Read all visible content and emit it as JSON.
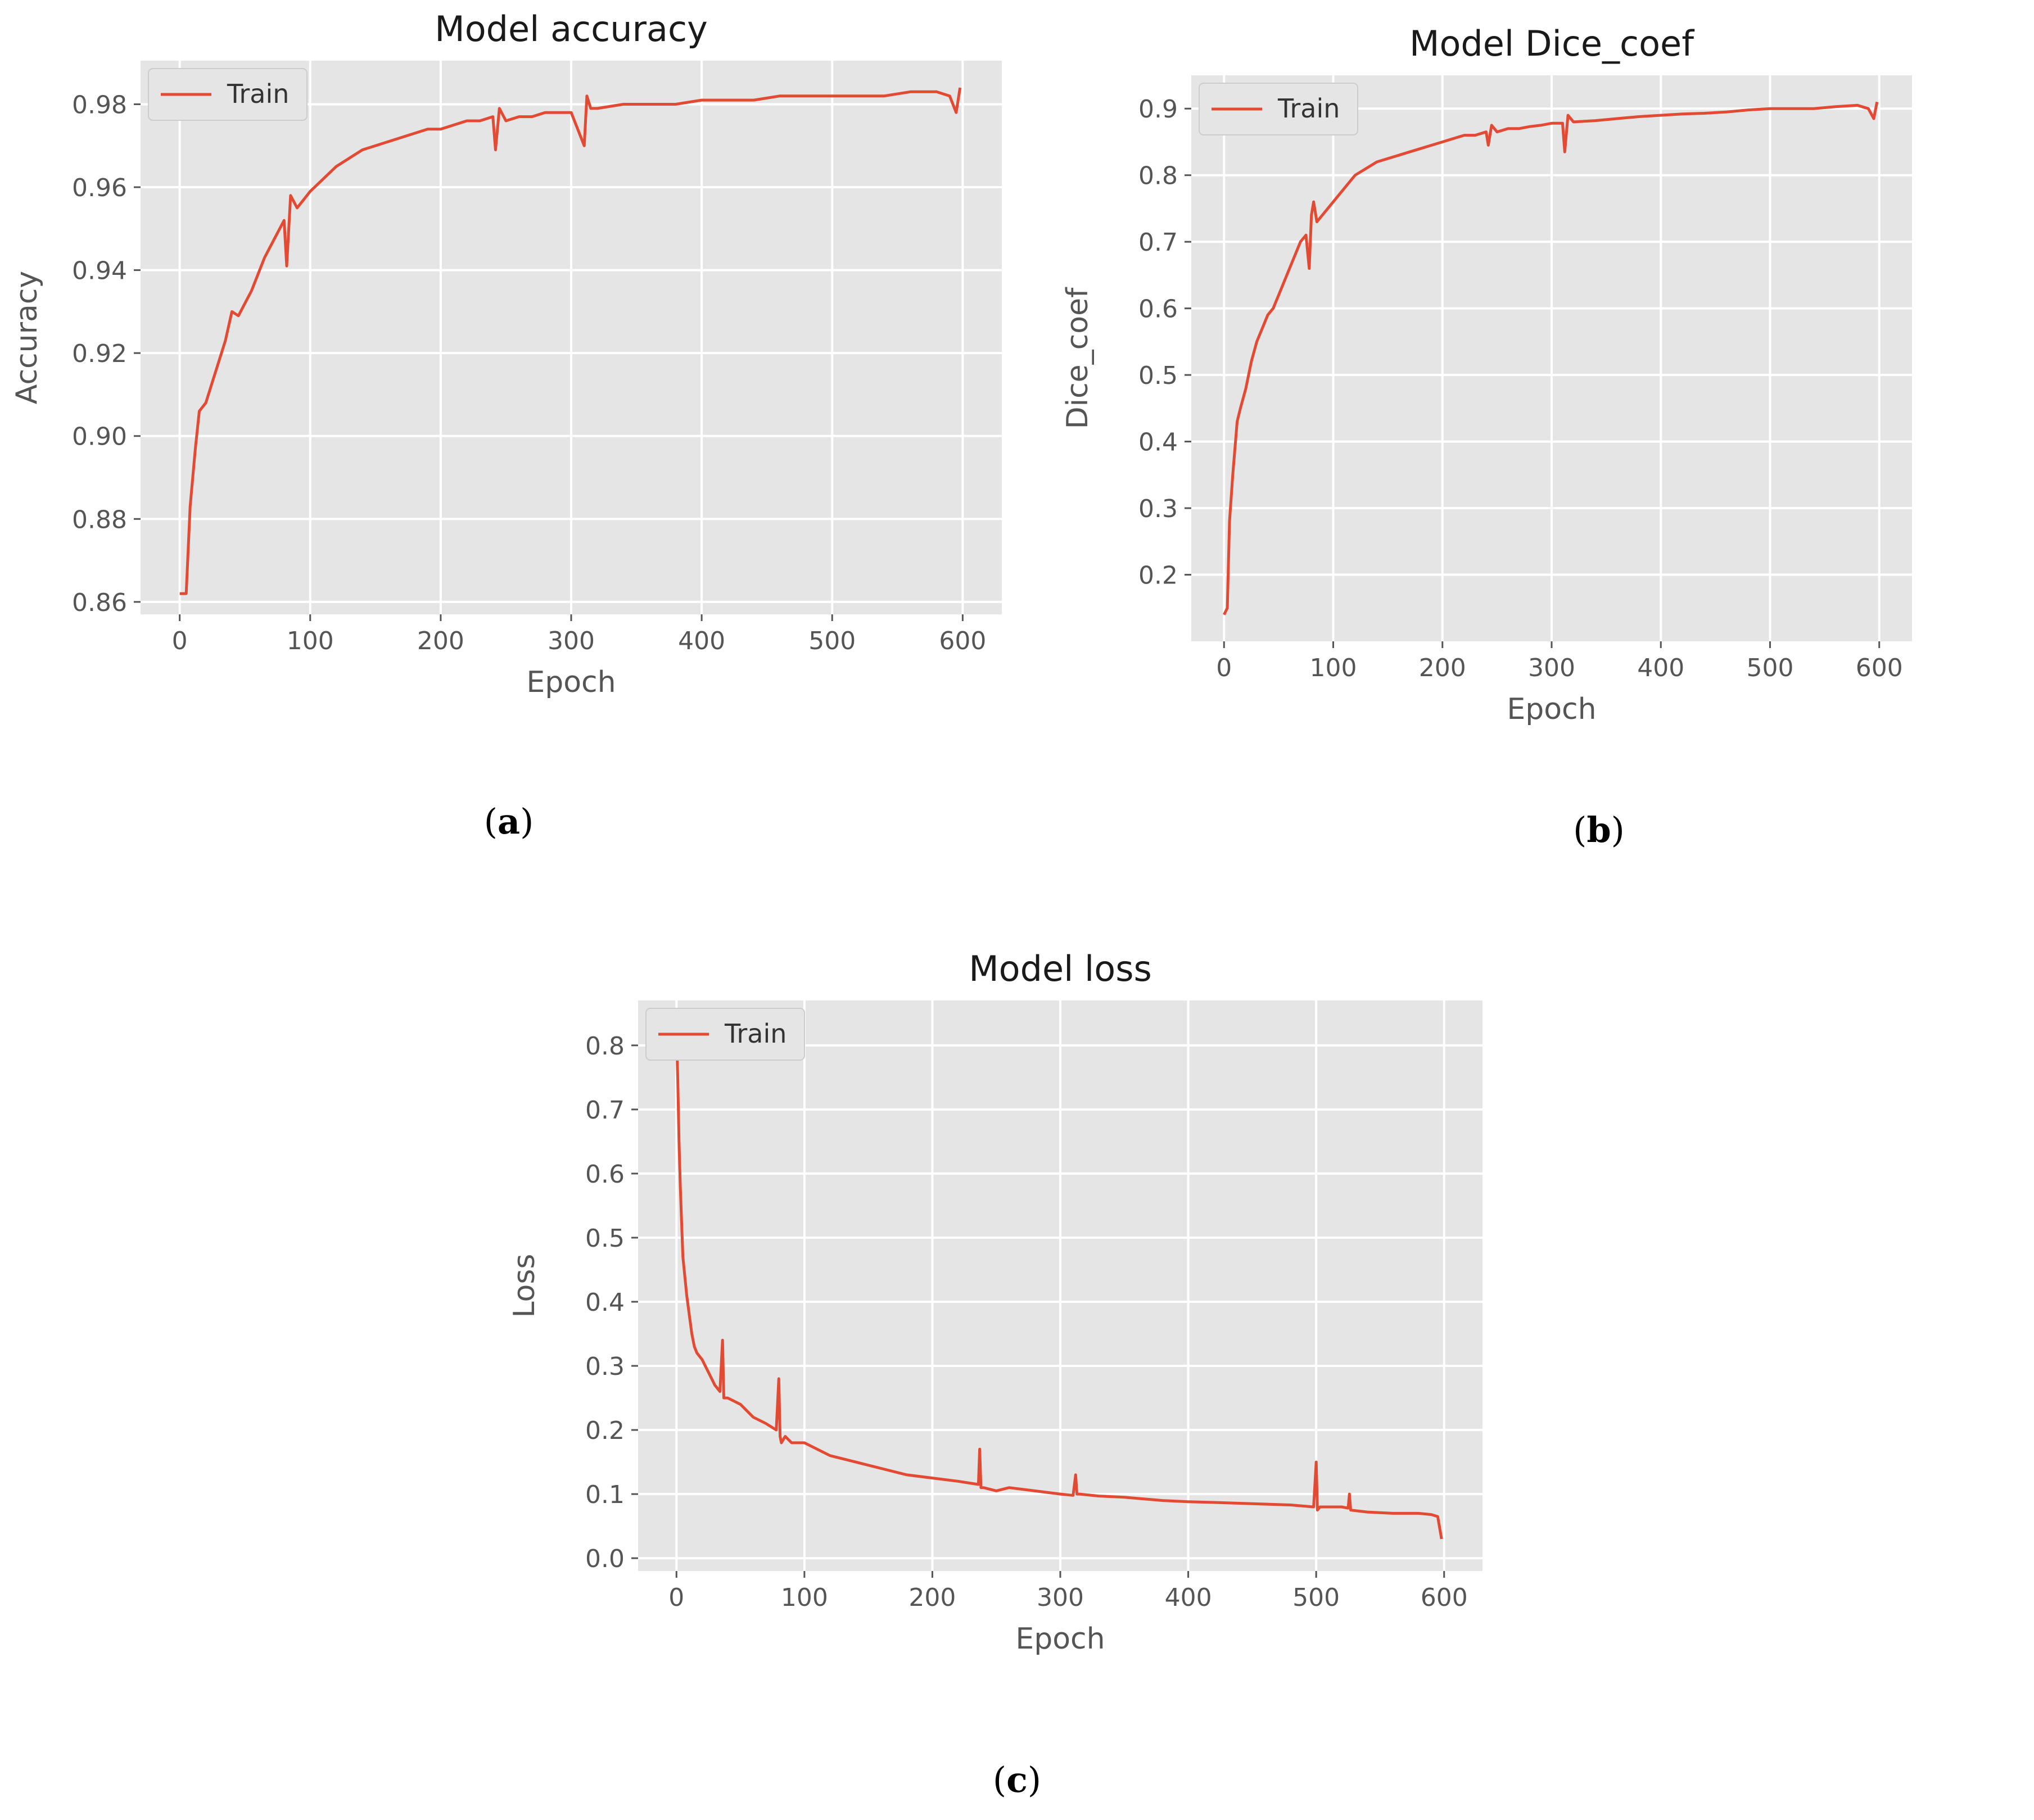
{
  "chart_data": [
    {
      "id": "a",
      "type": "line",
      "title": "Model accuracy",
      "xlabel": "Epoch",
      "ylabel": "Accuracy",
      "xlim": [
        -30,
        630
      ],
      "ylim": [
        0.857,
        0.9905
      ],
      "xticks": [
        0,
        100,
        200,
        300,
        400,
        500,
        600
      ],
      "yticks": [
        0.86,
        0.88,
        0.9,
        0.92,
        0.94,
        0.96,
        0.98
      ],
      "ytick_labels": [
        "0.86",
        "0.88",
        "0.90",
        "0.92",
        "0.94",
        "0.96",
        "0.98"
      ],
      "legend": {
        "entries": [
          "Train"
        ],
        "placement": "top-left"
      },
      "grid": true,
      "caption": "a",
      "series": [
        {
          "name": "Train",
          "color": "#e24a33",
          "x": [
            0,
            5,
            8,
            12,
            15,
            20,
            25,
            30,
            35,
            40,
            45,
            50,
            55,
            60,
            65,
            70,
            75,
            80,
            82,
            85,
            90,
            95,
            100,
            110,
            120,
            130,
            140,
            150,
            160,
            170,
            180,
            190,
            200,
            210,
            220,
            230,
            240,
            242,
            245,
            250,
            260,
            270,
            280,
            290,
            300,
            310,
            312,
            315,
            320,
            340,
            360,
            380,
            400,
            420,
            440,
            460,
            480,
            500,
            520,
            540,
            560,
            580,
            590,
            595,
            598
          ],
          "y": [
            0.862,
            0.862,
            0.883,
            0.897,
            0.906,
            0.908,
            0.913,
            0.918,
            0.923,
            0.93,
            0.929,
            0.932,
            0.935,
            0.939,
            0.943,
            0.946,
            0.949,
            0.952,
            0.941,
            0.958,
            0.955,
            0.957,
            0.959,
            0.962,
            0.965,
            0.967,
            0.969,
            0.97,
            0.971,
            0.972,
            0.973,
            0.974,
            0.974,
            0.975,
            0.976,
            0.976,
            0.977,
            0.969,
            0.979,
            0.976,
            0.977,
            0.977,
            0.978,
            0.978,
            0.978,
            0.97,
            0.982,
            0.979,
            0.979,
            0.98,
            0.98,
            0.98,
            0.981,
            0.981,
            0.981,
            0.982,
            0.982,
            0.982,
            0.982,
            0.982,
            0.983,
            0.983,
            0.982,
            0.978,
            0.984
          ]
        }
      ]
    },
    {
      "id": "b",
      "type": "line",
      "title": "Model Dice_coef",
      "xlabel": "Epoch",
      "ylabel": "Dice_coef",
      "xlim": [
        -30,
        630
      ],
      "ylim": [
        0.1,
        0.95
      ],
      "xticks": [
        0,
        100,
        200,
        300,
        400,
        500,
        600
      ],
      "yticks": [
        0.2,
        0.3,
        0.4,
        0.5,
        0.6,
        0.7,
        0.8,
        0.9
      ],
      "ytick_labels": [
        "0.2",
        "0.3",
        "0.4",
        "0.5",
        "0.6",
        "0.7",
        "0.8",
        "0.9"
      ],
      "legend": {
        "entries": [
          "Train"
        ],
        "placement": "top-left"
      },
      "grid": true,
      "caption": "b",
      "series": [
        {
          "name": "Train",
          "color": "#e24a33",
          "x": [
            0,
            3,
            5,
            8,
            12,
            15,
            20,
            25,
            30,
            35,
            40,
            45,
            50,
            55,
            60,
            65,
            70,
            75,
            78,
            80,
            82,
            85,
            90,
            95,
            100,
            110,
            120,
            130,
            140,
            150,
            160,
            170,
            180,
            190,
            200,
            210,
            220,
            230,
            240,
            242,
            245,
            250,
            260,
            270,
            280,
            290,
            300,
            310,
            312,
            315,
            320,
            340,
            360,
            380,
            400,
            420,
            440,
            460,
            480,
            500,
            520,
            540,
            560,
            580,
            590,
            595,
            598
          ],
          "y": [
            0.14,
            0.15,
            0.28,
            0.35,
            0.43,
            0.45,
            0.48,
            0.52,
            0.55,
            0.57,
            0.59,
            0.6,
            0.62,
            0.64,
            0.66,
            0.68,
            0.7,
            0.71,
            0.66,
            0.74,
            0.76,
            0.73,
            0.74,
            0.75,
            0.76,
            0.78,
            0.8,
            0.81,
            0.82,
            0.825,
            0.83,
            0.835,
            0.84,
            0.845,
            0.85,
            0.855,
            0.86,
            0.86,
            0.865,
            0.845,
            0.875,
            0.865,
            0.87,
            0.87,
            0.873,
            0.875,
            0.878,
            0.878,
            0.835,
            0.89,
            0.88,
            0.882,
            0.885,
            0.888,
            0.89,
            0.892,
            0.893,
            0.895,
            0.898,
            0.9,
            0.9,
            0.9,
            0.903,
            0.905,
            0.9,
            0.885,
            0.91
          ]
        }
      ]
    },
    {
      "id": "c",
      "type": "line",
      "title": "Model loss",
      "xlabel": "Epoch",
      "ylabel": "Loss",
      "xlim": [
        -30,
        630
      ],
      "ylim": [
        -0.02,
        0.87
      ],
      "xticks": [
        0,
        100,
        200,
        300,
        400,
        500,
        600
      ],
      "yticks": [
        0.0,
        0.1,
        0.2,
        0.3,
        0.4,
        0.5,
        0.6,
        0.7,
        0.8
      ],
      "ytick_labels": [
        "0.0",
        "0.1",
        "0.2",
        "0.3",
        "0.4",
        "0.5",
        "0.6",
        "0.7",
        "0.8"
      ],
      "legend": {
        "entries": [
          "Train"
        ],
        "placement": "top-left"
      },
      "grid": true,
      "caption": "c",
      "series": [
        {
          "name": "Train",
          "color": "#e24a33",
          "x": [
            0,
            1,
            2,
            3,
            5,
            8,
            10,
            12,
            14,
            16,
            20,
            25,
            30,
            34,
            36,
            37,
            40,
            50,
            60,
            70,
            78,
            80,
            81,
            82,
            85,
            90,
            100,
            120,
            140,
            160,
            180,
            200,
            220,
            236,
            237,
            238,
            240,
            250,
            260,
            280,
            300,
            310,
            312,
            313,
            315,
            330,
            350,
            380,
            400,
            420,
            450,
            480,
            498,
            500,
            501,
            503,
            520,
            525,
            526,
            527,
            540,
            560,
            580,
            590,
            595,
            598
          ],
          "y": [
            0.82,
            0.75,
            0.65,
            0.58,
            0.47,
            0.41,
            0.38,
            0.35,
            0.33,
            0.32,
            0.31,
            0.29,
            0.27,
            0.26,
            0.34,
            0.25,
            0.25,
            0.24,
            0.22,
            0.21,
            0.2,
            0.28,
            0.19,
            0.18,
            0.19,
            0.18,
            0.18,
            0.16,
            0.15,
            0.14,
            0.13,
            0.125,
            0.12,
            0.115,
            0.17,
            0.11,
            0.11,
            0.105,
            0.11,
            0.105,
            0.1,
            0.098,
            0.13,
            0.1,
            0.1,
            0.097,
            0.095,
            0.09,
            0.088,
            0.087,
            0.085,
            0.083,
            0.08,
            0.15,
            0.075,
            0.08,
            0.08,
            0.078,
            0.1,
            0.075,
            0.072,
            0.07,
            0.07,
            0.068,
            0.065,
            0.03
          ]
        }
      ]
    }
  ]
}
